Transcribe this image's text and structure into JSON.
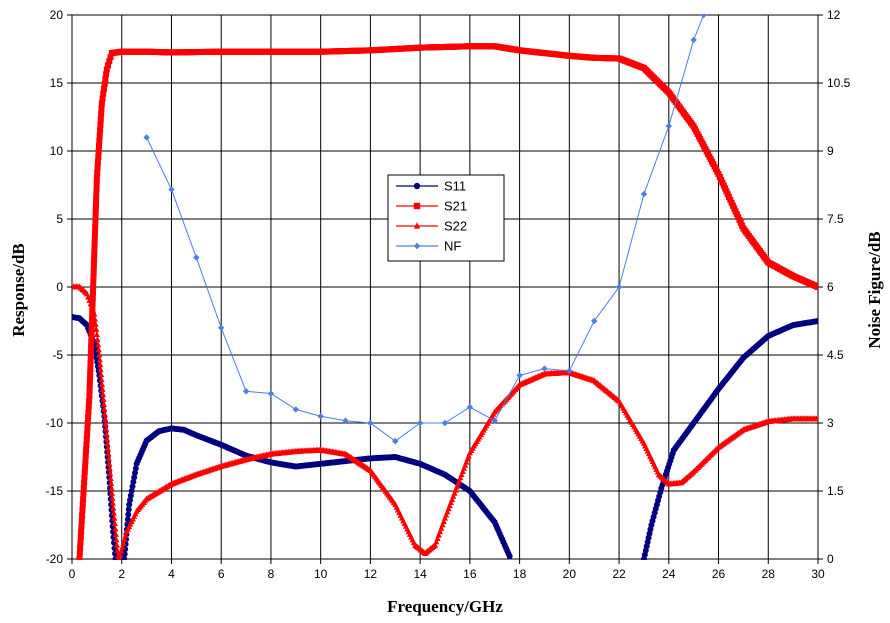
{
  "chart_data": {
    "type": "line",
    "title": "",
    "xlabel": "Frequency/GHz",
    "ylabel": "Response/dB",
    "y2label": "Noise Figure/dB",
    "xlim": [
      0,
      30
    ],
    "ylim": [
      -20,
      20
    ],
    "y2lim": [
      0,
      12
    ],
    "x_ticks": [
      0,
      2,
      4,
      6,
      8,
      10,
      12,
      14,
      16,
      18,
      20,
      22,
      24,
      26,
      28,
      30
    ],
    "y_ticks": [
      -20,
      -15,
      -10,
      -5,
      0,
      5,
      10,
      15,
      20
    ],
    "y2_ticks": [
      "0",
      "1.5",
      "3",
      "4.5",
      "6",
      "7.5",
      "9",
      "10.5",
      "12"
    ],
    "grid": true,
    "legend": {
      "placement": "center",
      "entries": [
        "S11",
        "S21",
        "S22",
        "NF"
      ]
    },
    "series": [
      {
        "name": "S11",
        "color": "#000080",
        "marker": "circle",
        "axis": "left",
        "segments": [
          [
            [
              0,
              -2.2
            ],
            [
              0.3,
              -2.3
            ],
            [
              0.6,
              -2.8
            ],
            [
              0.9,
              -4.2
            ],
            [
              1.1,
              -6.5
            ],
            [
              1.3,
              -9.5
            ],
            [
              1.5,
              -14
            ],
            [
              1.65,
              -18
            ],
            [
              1.75,
              -20
            ]
          ],
          [
            [
              2.1,
              -20
            ],
            [
              2.3,
              -16
            ],
            [
              2.6,
              -13
            ],
            [
              3.0,
              -11.3
            ],
            [
              3.5,
              -10.6
            ],
            [
              4.0,
              -10.4
            ],
            [
              4.5,
              -10.5
            ],
            [
              5.0,
              -10.9
            ],
            [
              6.0,
              -11.6
            ],
            [
              7.0,
              -12.4
            ],
            [
              8.0,
              -12.9
            ],
            [
              9.0,
              -13.2
            ],
            [
              10.0,
              -13.0
            ],
            [
              11.0,
              -12.8
            ],
            [
              12.0,
              -12.6
            ],
            [
              13.0,
              -12.5
            ],
            [
              14.0,
              -13.0
            ],
            [
              15.0,
              -13.8
            ],
            [
              16.0,
              -15.0
            ],
            [
              17.0,
              -17.3
            ],
            [
              17.6,
              -19.8
            ]
          ],
          [
            [
              23.0,
              -20
            ],
            [
              23.3,
              -17.5
            ],
            [
              23.7,
              -14.8
            ],
            [
              24.2,
              -12
            ],
            [
              25.0,
              -10
            ],
            [
              26.0,
              -7.5
            ],
            [
              27.0,
              -5.2
            ],
            [
              28.0,
              -3.6
            ],
            [
              29.0,
              -2.8
            ],
            [
              30.0,
              -2.5
            ]
          ]
        ]
      },
      {
        "name": "S21",
        "color": "#ff0000",
        "marker": "square",
        "axis": "left",
        "segments": [
          [
            [
              0.3,
              -20
            ],
            [
              0.5,
              -14
            ],
            [
              0.7,
              -8
            ],
            [
              0.85,
              0
            ],
            [
              1.0,
              8
            ],
            [
              1.2,
              13.5
            ],
            [
              1.4,
              16
            ],
            [
              1.6,
              17.2
            ],
            [
              2.0,
              17.3
            ],
            [
              3.0,
              17.3
            ],
            [
              4.0,
              17.25
            ],
            [
              6.0,
              17.3
            ],
            [
              8.0,
              17.3
            ],
            [
              10.0,
              17.3
            ],
            [
              12.0,
              17.4
            ],
            [
              14.0,
              17.6
            ],
            [
              16.0,
              17.7
            ],
            [
              17.0,
              17.7
            ],
            [
              18.0,
              17.4
            ],
            [
              19.0,
              17.2
            ],
            [
              20.0,
              17.0
            ],
            [
              21.0,
              16.85
            ],
            [
              22.0,
              16.8
            ],
            [
              23.0,
              16.1
            ],
            [
              24.0,
              14.3
            ],
            [
              25.0,
              11.8
            ],
            [
              26.0,
              8.3
            ],
            [
              27.0,
              4.3
            ],
            [
              28.0,
              1.8
            ],
            [
              29.0,
              0.8
            ],
            [
              30.0,
              0
            ]
          ]
        ]
      },
      {
        "name": "S22",
        "color": "#ff0000",
        "marker": "triangle",
        "axis": "left",
        "segments": [
          [
            [
              0,
              0
            ],
            [
              0.3,
              0
            ],
            [
              0.6,
              -0.5
            ],
            [
              0.9,
              -2
            ],
            [
              1.1,
              -5
            ],
            [
              1.3,
              -9
            ],
            [
              1.5,
              -13
            ],
            [
              1.7,
              -17
            ],
            [
              1.85,
              -19.8
            ]
          ],
          [
            [
              1.9,
              -20
            ],
            [
              2.2,
              -18
            ],
            [
              2.6,
              -16.5
            ],
            [
              3.0,
              -15.6
            ],
            [
              4.0,
              -14.5
            ],
            [
              5.0,
              -13.8
            ],
            [
              6.0,
              -13.2
            ],
            [
              7.0,
              -12.7
            ],
            [
              8.0,
              -12.3
            ],
            [
              9.0,
              -12.1
            ],
            [
              10.0,
              -12.0
            ],
            [
              11.0,
              -12.3
            ],
            [
              12.0,
              -13.5
            ],
            [
              13.0,
              -16.0
            ],
            [
              13.8,
              -19.0
            ],
            [
              14.2,
              -19.6
            ],
            [
              14.6,
              -19.0
            ],
            [
              15.0,
              -17.0
            ],
            [
              16.0,
              -12.2
            ],
            [
              17.0,
              -9.2
            ],
            [
              18.0,
              -7.2
            ],
            [
              19.0,
              -6.4
            ],
            [
              20.0,
              -6.3
            ],
            [
              21.0,
              -6.9
            ],
            [
              22.0,
              -8.4
            ],
            [
              23.0,
              -11.5
            ],
            [
              23.6,
              -13.8
            ],
            [
              24.0,
              -14.5
            ],
            [
              24.5,
              -14.4
            ],
            [
              25.0,
              -13.6
            ],
            [
              26.0,
              -11.8
            ],
            [
              27.0,
              -10.5
            ],
            [
              28.0,
              -9.9
            ],
            [
              29.0,
              -9.7
            ],
            [
              30.0,
              -9.7
            ]
          ]
        ]
      },
      {
        "name": "NF",
        "color": "#4a7fe0",
        "marker": "diamond",
        "axis": "right",
        "segments": [
          [
            [
              3,
              9.3
            ],
            [
              4,
              8.15
            ],
            [
              5,
              6.65
            ],
            [
              6,
              5.1
            ],
            [
              7,
              3.7
            ],
            [
              8,
              3.65
            ],
            [
              9,
              3.3
            ],
            [
              10,
              3.15
            ],
            [
              11,
              3.05
            ],
            [
              12,
              3.0
            ],
            [
              13,
              2.6
            ],
            [
              14,
              3.0
            ],
            [
              15,
              3.0
            ],
            [
              16,
              3.35
            ],
            [
              17,
              3.05
            ],
            [
              18,
              4.05
            ],
            [
              19,
              4.2
            ],
            [
              20,
              4.15
            ],
            [
              21,
              5.25
            ],
            [
              22,
              6.0
            ],
            [
              23,
              8.05
            ],
            [
              24,
              9.55
            ],
            [
              25,
              11.45
            ],
            [
              25.4,
              12.0
            ]
          ]
        ]
      }
    ]
  }
}
